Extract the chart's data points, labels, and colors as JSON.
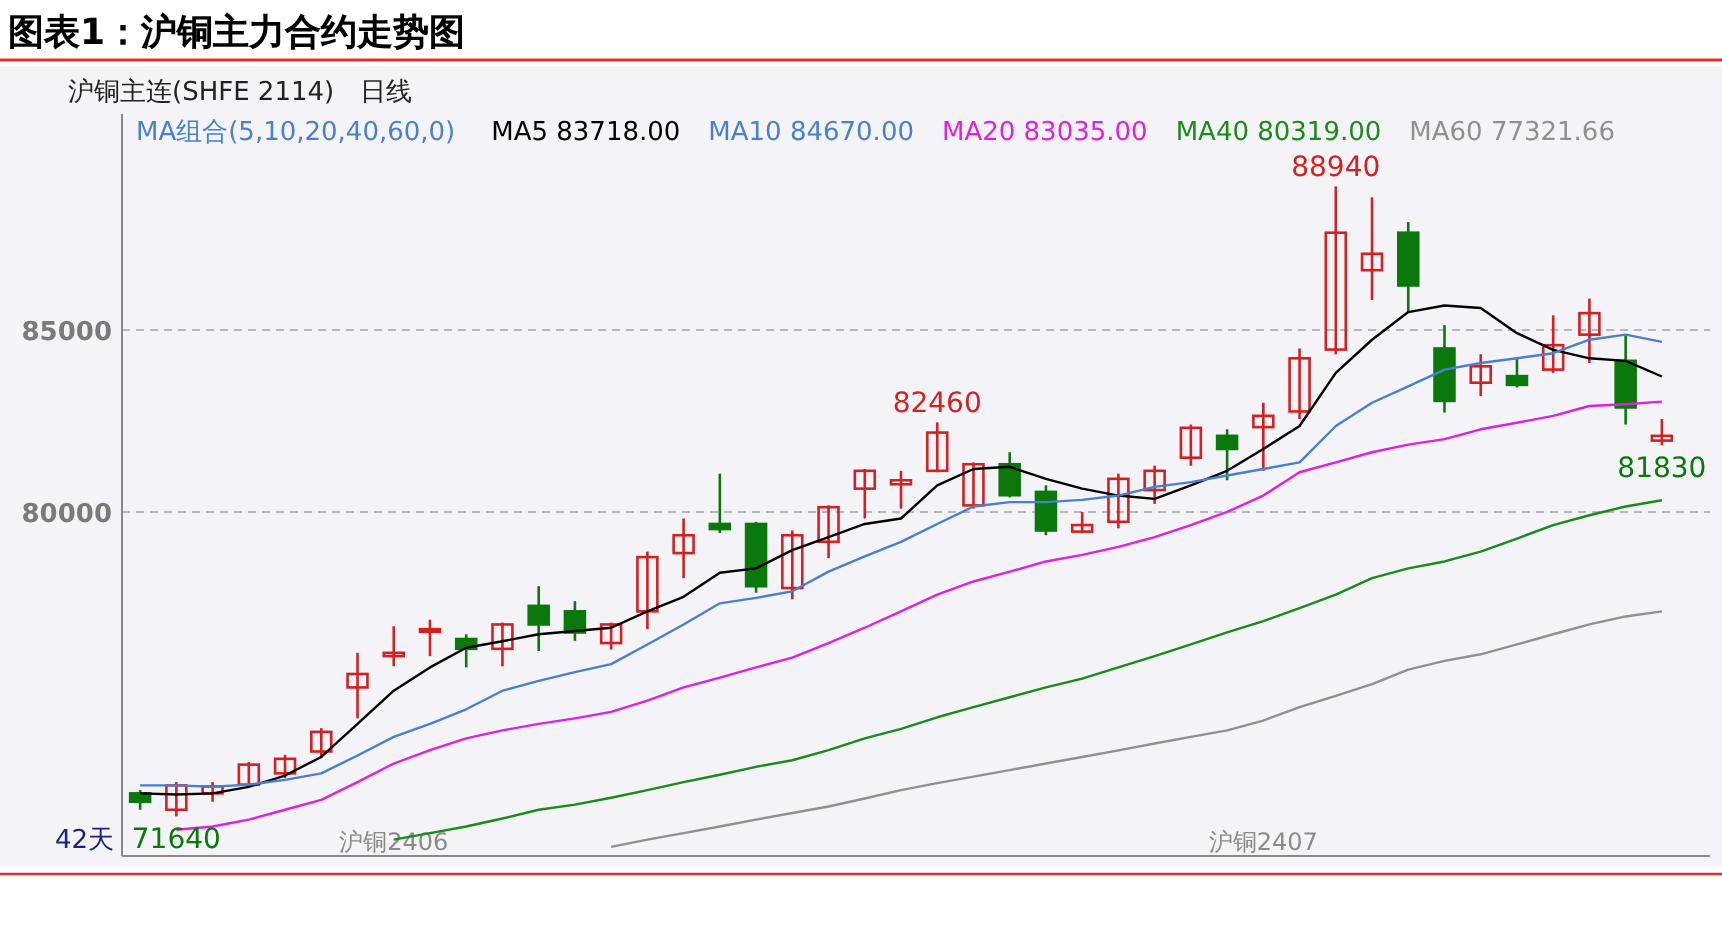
{
  "chart_data": {
    "type": "candlestick",
    "title": "图表1：沪铜主力合约走势图",
    "subtitle": "沪铜主连(SHFE 2114)　日线",
    "legend_title": "MA组合(5,10,20,40,60,0)",
    "legend": "top",
    "grid": "y",
    "ylim": [
      70550,
      90930
    ],
    "yticks": [
      80000,
      85000
    ],
    "categories": [
      null,
      null,
      null,
      null,
      null,
      null,
      null,
      "沪铜2406",
      null,
      null,
      null,
      null,
      null,
      null,
      null,
      null,
      null,
      null,
      null,
      null,
      null,
      null,
      null,
      null,
      null,
      null,
      null,
      null,
      null,
      null,
      null,
      "沪铜2407",
      null,
      null,
      null,
      null,
      null,
      null,
      null,
      null,
      null,
      null,
      null
    ],
    "ohlc": [
      [
        72270,
        72360,
        71820,
        72040
      ],
      [
        71820,
        72580,
        71640,
        72490
      ],
      [
        72270,
        72580,
        72040,
        72460
      ],
      [
        72510,
        73130,
        72460,
        73060
      ],
      [
        72820,
        73330,
        72690,
        73220
      ],
      [
        73420,
        74060,
        73240,
        73960
      ],
      [
        75180,
        76130,
        74330,
        75550
      ],
      [
        76040,
        76860,
        75760,
        76130
      ],
      [
        76710,
        77040,
        76040,
        76780
      ],
      [
        76510,
        76640,
        75730,
        76240
      ],
      [
        76240,
        76960,
        75760,
        76910
      ],
      [
        77420,
        77960,
        76180,
        76910
      ],
      [
        77270,
        77550,
        76460,
        76690
      ],
      [
        76400,
        76960,
        76220,
        76910
      ],
      [
        77270,
        78910,
        76780,
        78760
      ],
      [
        78870,
        79820,
        78180,
        79360
      ],
      [
        79670,
        81050,
        79420,
        79530
      ],
      [
        79670,
        79730,
        77780,
        77960
      ],
      [
        77910,
        79490,
        77600,
        79360
      ],
      [
        79180,
        80180,
        78730,
        80130
      ],
      [
        80640,
        81180,
        79820,
        81130
      ],
      [
        80760,
        81130,
        80090,
        80870
      ],
      [
        81130,
        82460,
        81090,
        82180
      ],
      [
        80180,
        81360,
        80090,
        81310
      ],
      [
        81310,
        81640,
        80400,
        80460
      ],
      [
        80550,
        80730,
        79360,
        79490
      ],
      [
        79460,
        80000,
        79420,
        79640
      ],
      [
        79730,
        81050,
        79550,
        80910
      ],
      [
        80600,
        81270,
        80220,
        81130
      ],
      [
        81490,
        82400,
        81270,
        82310
      ],
      [
        82090,
        82270,
        80870,
        81730
      ],
      [
        82330,
        83000,
        81130,
        82640
      ],
      [
        82760,
        84490,
        82550,
        84220
      ],
      [
        84460,
        88940,
        84330,
        87670
      ],
      [
        86640,
        88640,
        85820,
        87090
      ],
      [
        87670,
        87960,
        85490,
        86220
      ],
      [
        84490,
        85130,
        82730,
        83050
      ],
      [
        83550,
        84330,
        83180,
        84000
      ],
      [
        83730,
        84220,
        83420,
        83490
      ],
      [
        83910,
        85400,
        83820,
        84580
      ],
      [
        84870,
        85860,
        84090,
        85460
      ],
      [
        84150,
        84870,
        82400,
        82870
      ],
      [
        81960,
        82550,
        81830,
        82090
      ]
    ],
    "colors": [
      "#0a780a",
      "#d42020",
      "#d42020",
      "#d42020",
      "#d42020",
      "#d42020",
      "#d42020",
      "#d42020",
      "#d42020",
      "#0a780a",
      "#d42020",
      "#0a780a",
      "#0a780a",
      "#d42020",
      "#d42020",
      "#d42020",
      "#0a780a",
      "#0a780a",
      "#d42020",
      "#d42020",
      "#d42020",
      "#d42020",
      "#d42020",
      "#d42020",
      "#0a780a",
      "#0a780a",
      "#d42020",
      "#d42020",
      "#d42020",
      "#d42020",
      "#0a780a",
      "#d42020",
      "#d42020",
      "#d42020",
      "#d42020",
      "#0a780a",
      "#0a780a",
      "#d42020",
      "#0a780a",
      "#d42020",
      "#d42020",
      "#0a780a",
      "#d42020"
    ],
    "series": [
      {
        "type": "line",
        "name": "MA5 83718.00",
        "color": "#000000",
        "values": [
          72270,
          72240,
          72270,
          72450,
          72760,
          73270,
          74180,
          75090,
          75730,
          76270,
          76450,
          76640,
          76730,
          76820,
          77270,
          77670,
          78330,
          78450,
          78950,
          79310,
          79670,
          79820,
          80730,
          81180,
          81240,
          80910,
          80640,
          80450,
          80360,
          80730,
          81130,
          81730,
          82360,
          83820,
          84730,
          85490,
          85670,
          85600,
          84910,
          84450,
          84220,
          84150,
          83720
        ]
      },
      {
        "type": "line",
        "name": "MA10 84670.00",
        "color": "#4a7fd0",
        "values": [
          72490,
          72490,
          72450,
          72510,
          72640,
          72820,
          73310,
          73820,
          74180,
          74580,
          75090,
          75360,
          75600,
          75820,
          76360,
          76910,
          77490,
          77640,
          77820,
          78360,
          78780,
          79180,
          79670,
          80150,
          80270,
          80270,
          80330,
          80450,
          80690,
          80820,
          81000,
          81180,
          81360,
          82360,
          83000,
          83450,
          83910,
          84090,
          84220,
          84360,
          84730,
          84870,
          84670
        ]
      },
      {
        "type": "line",
        "name": "MA20 83035.00",
        "color": "#e020e0",
        "values": [
          null,
          71270,
          71360,
          71550,
          71820,
          72090,
          72580,
          73090,
          73460,
          73780,
          74000,
          74180,
          74330,
          74510,
          74820,
          75180,
          75450,
          75730,
          76000,
          76400,
          76820,
          77270,
          77730,
          78090,
          78360,
          78640,
          78820,
          79040,
          79310,
          79640,
          80000,
          80450,
          81090,
          81360,
          81640,
          81850,
          82000,
          82270,
          82450,
          82640,
          82910,
          82960,
          83030
        ]
      },
      {
        "type": "line",
        "name": "MA40 80319.00",
        "color": "#1a8a1a",
        "values": [
          null,
          null,
          null,
          null,
          null,
          null,
          null,
          71000,
          71180,
          71360,
          71580,
          71820,
          71960,
          72150,
          72360,
          72580,
          72780,
          73000,
          73180,
          73460,
          73780,
          74040,
          74360,
          74640,
          74910,
          75180,
          75420,
          75730,
          76040,
          76360,
          76690,
          77000,
          77360,
          77730,
          78180,
          78450,
          78640,
          78910,
          79270,
          79640,
          79910,
          80150,
          80320
        ]
      },
      {
        "type": "line",
        "name": "MA60 77321.66",
        "color": "#909090",
        "values": [
          null,
          null,
          null,
          null,
          null,
          null,
          null,
          null,
          null,
          null,
          null,
          null,
          null,
          70800,
          71000,
          71180,
          71360,
          71550,
          71730,
          71910,
          72130,
          72360,
          72550,
          72730,
          72910,
          73090,
          73270,
          73450,
          73640,
          73820,
          74000,
          74270,
          74640,
          74950,
          75270,
          75670,
          75910,
          76090,
          76360,
          76640,
          76910,
          77130,
          77270
        ]
      }
    ],
    "annotations": [
      {
        "text": "88940",
        "y": 88940
      },
      {
        "text": "82460",
        "y": 82460
      },
      {
        "text": "81830",
        "y": 81830
      },
      {
        "text": "71640",
        "y": 71640
      },
      "42天"
    ]
  }
}
